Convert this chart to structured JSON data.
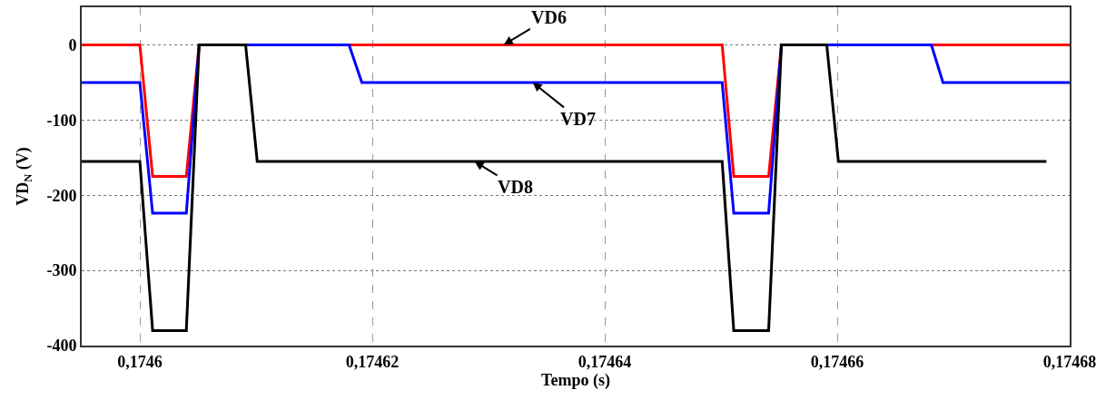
{
  "chart_data": {
    "type": "line",
    "xlabel": "Tempo (s)",
    "ylabel": "VD$_{N}$ (V)",
    "xlim": [
      0.174595,
      0.17468
    ],
    "ylim": [
      -400,
      50
    ],
    "xticks": [
      {
        "value": 0.1746,
        "label": "0,1746"
      },
      {
        "value": 0.17462,
        "label": "0,17462"
      },
      {
        "value": 0.17464,
        "label": "0,17464"
      },
      {
        "value": 0.17466,
        "label": "0,17466"
      },
      {
        "value": 0.17468,
        "label": "0,17468"
      }
    ],
    "yticks": [
      0,
      -100,
      -200,
      -300,
      -400
    ],
    "grid": true,
    "marker": "none",
    "line_style": "solid",
    "series": [
      {
        "color": "#ff0000",
        "x": [
          0.174595,
          0.1746,
          0.1746011,
          0.174604,
          0.1746051,
          0.1746501,
          0.1746511,
          0.1746541,
          0.1746552,
          0.17468
        ],
        "values": [
          0,
          0,
          -175,
          -175,
          0,
          0,
          -175,
          -175,
          0,
          0
        ]
      },
      {
        "color": "#0000ff",
        "x": [
          0.174595,
          0.1746,
          0.1746011,
          0.174604,
          0.1746051,
          0.174618,
          0.1746191,
          0.1746501,
          0.1746511,
          0.1746541,
          0.1746552,
          0.1746681,
          0.1746691,
          0.17468
        ],
        "values": [
          -50,
          -50,
          -224,
          -224,
          0,
          0,
          -50,
          -50,
          -224,
          -224,
          0,
          0,
          -50,
          -50
        ]
      },
      {
        "color": "#000000",
        "x": [
          0.174595,
          0.1746,
          0.1746011,
          0.174604,
          0.1746051,
          0.1746091,
          0.1746101,
          0.1746501,
          0.1746511,
          0.1746541,
          0.1746552,
          0.1746591,
          0.1746601,
          0.174678
        ],
        "values": [
          -155,
          -155,
          -380,
          -380,
          0,
          0,
          -155,
          -155,
          -380,
          -380,
          0,
          0,
          -155,
          -155
        ]
      }
    ],
    "annotations": [
      {
        "text": "VD6",
        "x": 0.1746313,
        "y": 0
      },
      {
        "text": "VD7",
        "x": 0.1746338,
        "y": -50
      },
      {
        "text": "VD8",
        "x": 0.1746288,
        "y": -155
      }
    ]
  }
}
